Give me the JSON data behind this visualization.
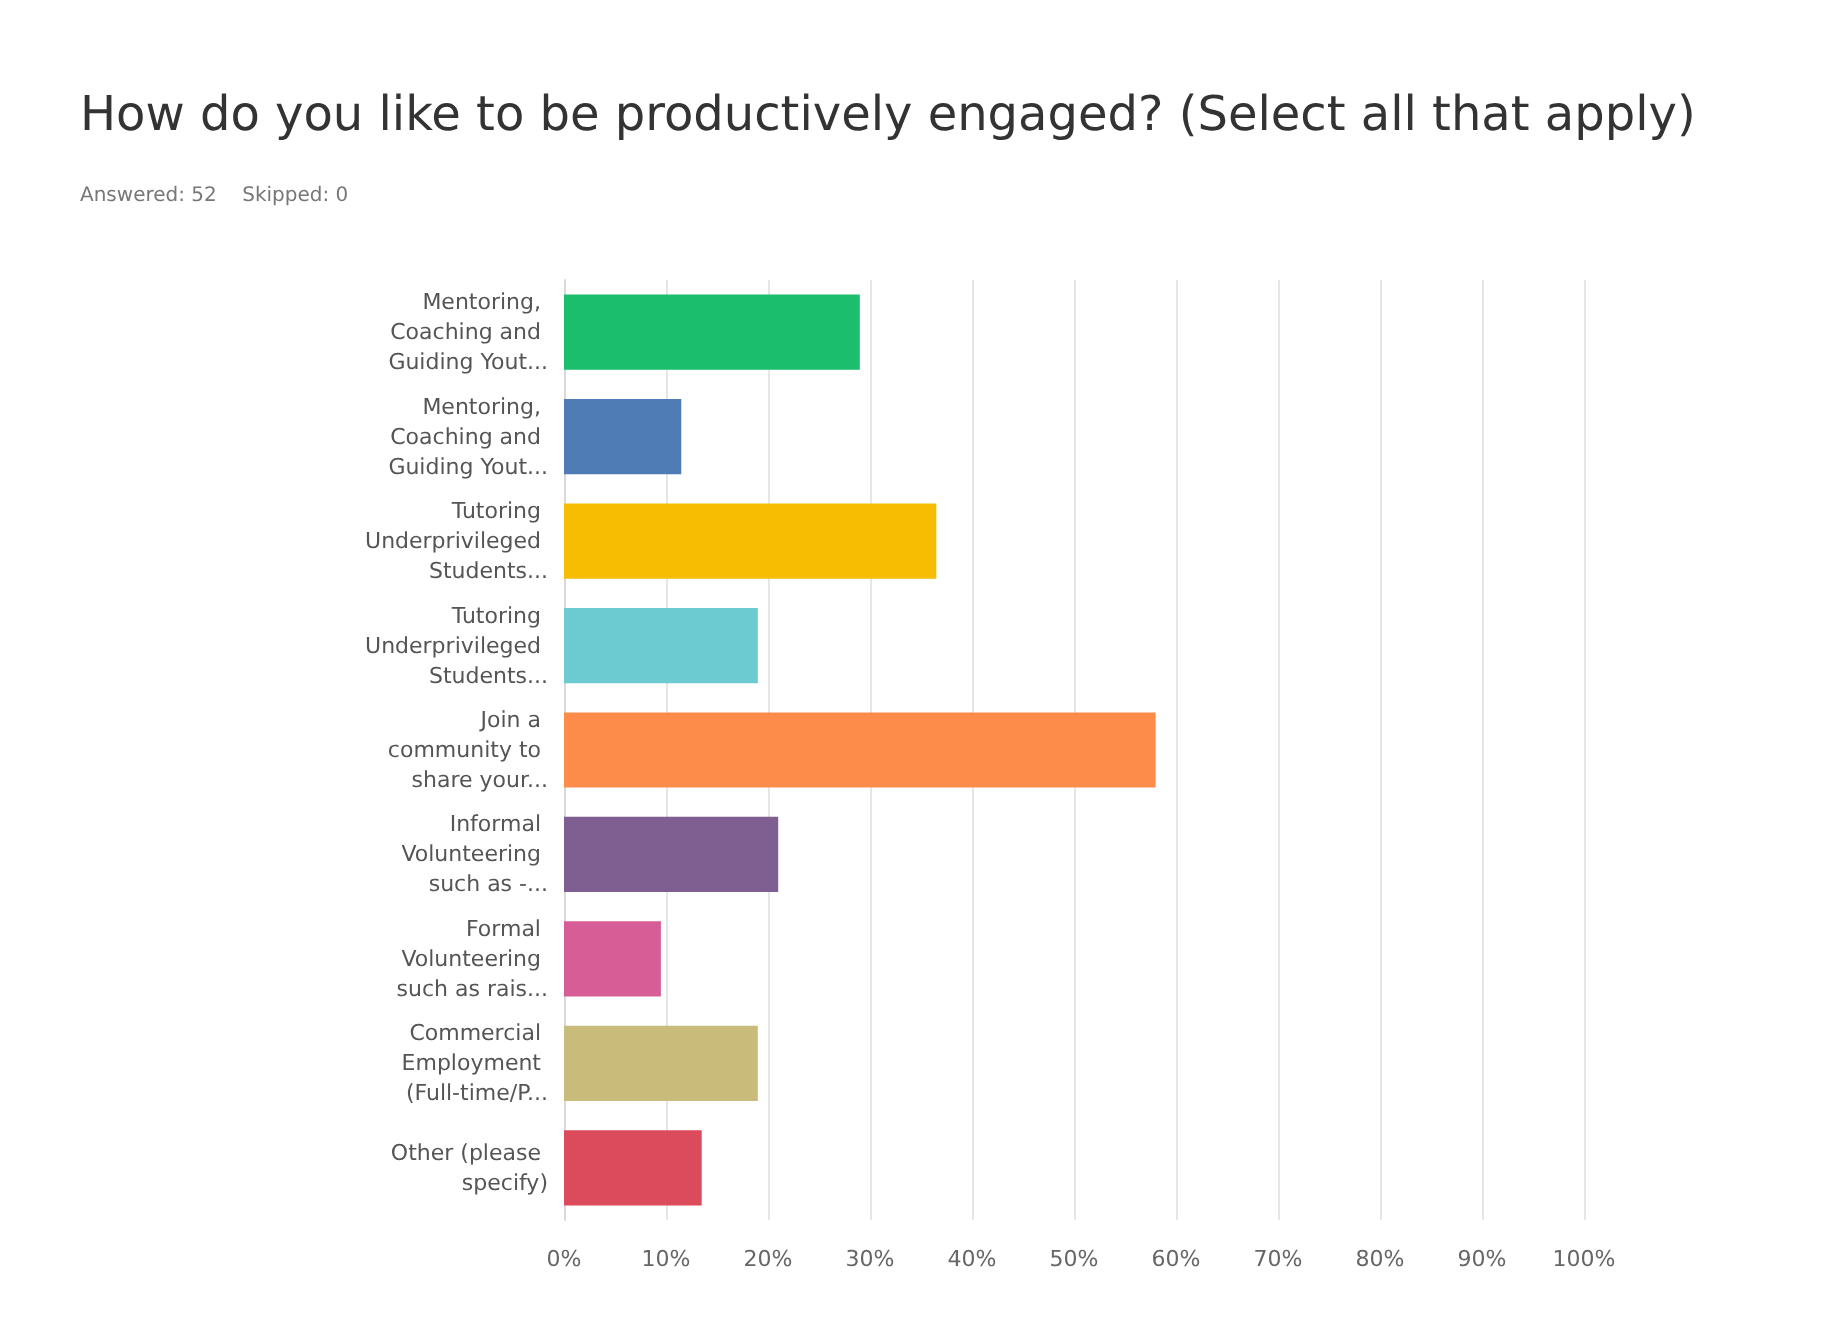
{
  "chart_data": {
    "type": "bar",
    "orientation": "horizontal",
    "title": "How do you like to be productively engaged? (Select all that apply)",
    "subtitle": "Answered: 52    Skipped: 0",
    "categories": [
      "Mentoring, Coaching and Guiding Yout...",
      "Mentoring, Coaching and Guiding Yout...",
      "Tutoring Underprivileged Students...",
      "Tutoring Underprivileged Students...",
      "Join a community to share your...",
      "Informal Volunteering such as -...",
      "Formal Volunteering such as rais...",
      "Commercial Employment (Full-time/P...",
      "Other (please specify)"
    ],
    "values": [
      29,
      11.5,
      36.5,
      19,
      58,
      21,
      9.5,
      19,
      13.5
    ],
    "colors": [
      "#1abe6d",
      "#507cb6",
      "#f6bd02",
      "#6ccad1",
      "#fd8b4a",
      "#7f5e92",
      "#d65d96",
      "#c9bb7a",
      "#db4b5b"
    ],
    "xlim": [
      0,
      100
    ],
    "xticks": [
      {
        "value": 0,
        "label": "0%"
      },
      {
        "value": 10,
        "label": "10%"
      },
      {
        "value": 20,
        "label": "20%"
      },
      {
        "value": 30,
        "label": "30%"
      },
      {
        "value": 40,
        "label": "40%"
      },
      {
        "value": 50,
        "label": "50%"
      },
      {
        "value": 60,
        "label": "60%"
      },
      {
        "value": 70,
        "label": "70%"
      },
      {
        "value": 80,
        "label": "80%"
      },
      {
        "value": 90,
        "label": "90%"
      },
      {
        "value": 100,
        "label": "100%"
      }
    ],
    "grid": "x"
  }
}
